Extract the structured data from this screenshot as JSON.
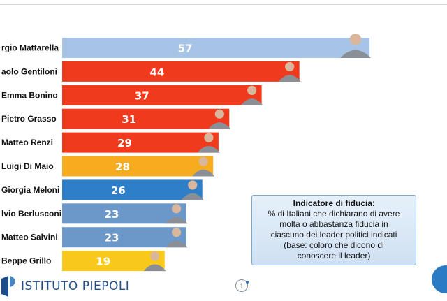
{
  "chart_data": {
    "type": "bar",
    "orientation": "horizontal",
    "categories": [
      "rgio Mattarella",
      "aolo Gentiloni",
      "Emma Bonino",
      "Pietro Grasso",
      "Matteo Renzi",
      "Luigi Di Maio",
      "Giorgia Meloni",
      "lvio Berlusconi",
      "Matteo Salvini",
      "Beppe Grillo"
    ],
    "values": [
      57,
      44,
      37,
      31,
      29,
      28,
      26,
      23,
      23,
      19
    ],
    "bar_colors": [
      "#a7c4e6",
      "#f03a1e",
      "#f03a1e",
      "#f03a1e",
      "#f03a1e",
      "#f6ac1e",
      "#2f7fc8",
      "#6b98c9",
      "#6b98c9",
      "#f8c81a"
    ],
    "xlim": [
      0,
      100
    ],
    "grid": false,
    "legend": "none"
  },
  "info_box": {
    "title": "Indicatore di fiducia",
    "title_suffix": ":",
    "lines": [
      "% di Italiani che dichiarano di avere",
      "molta o abbastanza fiducia in",
      "ciascuno dei leader politici indicati",
      "(base: coloro che dicono di",
      "conoscere il leader)"
    ]
  },
  "footer": {
    "logo_text": "ISTITUTO PIEPOLI",
    "page_number": "1"
  },
  "colors": {
    "brand": "#1f4f8a",
    "label": "#111111",
    "value": "#ffffff",
    "photo": "#8a8f97"
  },
  "icons": [
    "istituto-piepoli-logo-icon",
    "leader-photo-icon",
    "corner-circle-icon"
  ]
}
